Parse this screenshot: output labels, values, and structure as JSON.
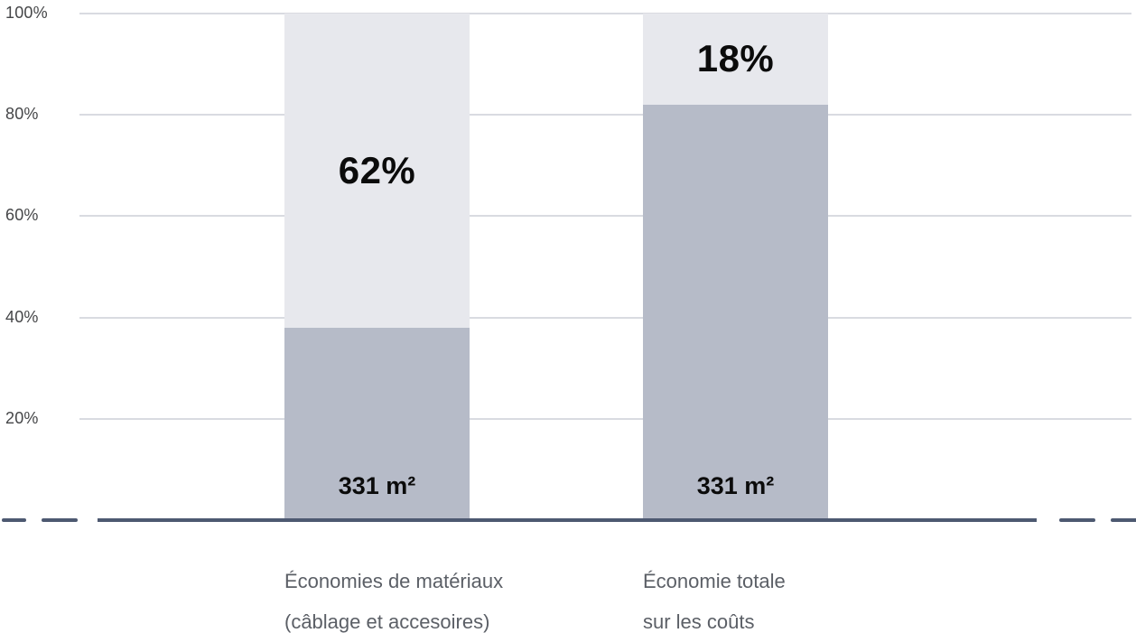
{
  "chart_data": {
    "type": "bar",
    "stacked": true,
    "orientation": "vertical",
    "title": "",
    "legend": "none",
    "grid": true,
    "categories": [
      "Économies de matériaux (câblage et accesoires)",
      "Économie totale sur les coûts"
    ],
    "category_lines": [
      [
        "Économies de matériaux",
        "(câblage et accesoires)"
      ],
      [
        "Économie totale",
        "sur les coûts"
      ]
    ],
    "series": [
      {
        "name": "segment-bottom-dark",
        "color": "#b6bbc8",
        "values": [
          38,
          82
        ]
      },
      {
        "name": "segment-top-light",
        "color": "#e7e8ed",
        "values": [
          62,
          18
        ]
      }
    ],
    "segment_percent_labels": [
      "62%",
      "18%"
    ],
    "bar_value_labels": [
      "331 m²",
      "331 m²"
    ],
    "y_axis": {
      "min": 0,
      "max": 100,
      "ticks": [
        "100%",
        "80%",
        "60%",
        "40%",
        "20%"
      ],
      "tick_values": [
        100,
        80,
        60,
        40,
        20
      ]
    },
    "colors": {
      "gridline": "#d9dbe1",
      "baseline": "#4d5971",
      "tick_text": "#454648",
      "category_text": "#5b5f66",
      "label_text": "#0b0b0b",
      "background": "#ffffff"
    }
  }
}
